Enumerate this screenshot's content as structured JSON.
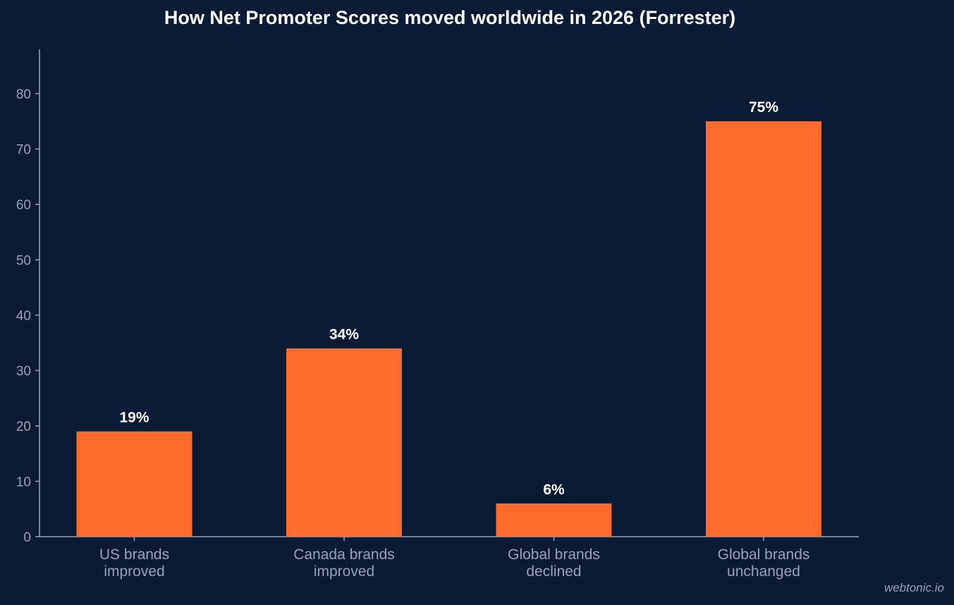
{
  "chart_data": {
    "type": "bar",
    "title": "How Net Promoter Scores moved worldwide in 2026 (Forrester)",
    "categories": [
      [
        "US brands",
        "improved"
      ],
      [
        "Canada brands",
        "improved"
      ],
      [
        "Global brands",
        "declined"
      ],
      [
        "Global brands",
        "unchanged"
      ]
    ],
    "values": [
      19,
      34,
      6,
      75
    ],
    "data_labels": [
      "19%",
      "34%",
      "6%",
      "75%"
    ],
    "yticks": [
      0,
      10,
      20,
      30,
      40,
      50,
      60,
      70,
      80
    ],
    "ylim": [
      0,
      88
    ],
    "xlabel": "",
    "ylabel": "",
    "grid": false,
    "bar_color": "#ff6b2d",
    "axis_color": "#94a3b8"
  },
  "watermark": "webtonic.io"
}
